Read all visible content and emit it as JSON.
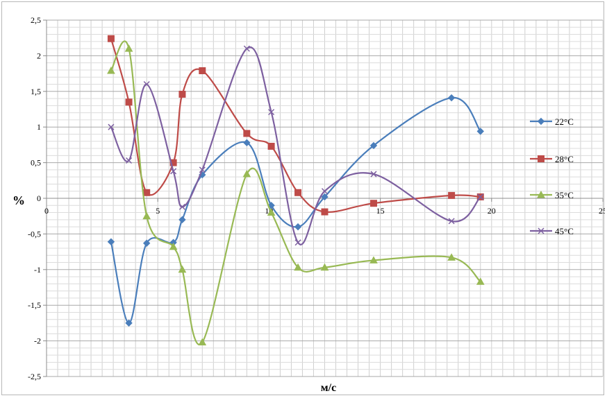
{
  "chart_data": {
    "type": "line",
    "title": "",
    "xlabel": "м/с",
    "ylabel": "%",
    "xlim": [
      0,
      25
    ],
    "ylim": [
      -2.5,
      2.5
    ],
    "x_ticks": [
      0,
      5,
      10,
      15,
      20,
      25
    ],
    "y_ticks": [
      2.5,
      2,
      1.5,
      1,
      0.5,
      0,
      -0.5,
      -1,
      -1.5,
      -2,
      -2.5
    ],
    "y_tick_labels": [
      "2,5",
      "2",
      "1,5",
      "1",
      "0,5",
      "0",
      "-0,5",
      "-1",
      "-1,5",
      "-2",
      "-2,5"
    ],
    "x_tick_labels": [
      "0",
      "5",
      "10",
      "15",
      "20",
      "25"
    ],
    "grid": true,
    "smooth": true,
    "legend_position": "right",
    "series": [
      {
        "name": "22°C",
        "color": "#4a7ebb",
        "marker": "diamond",
        "x": [
          2.9,
          3.7,
          4.5,
          5.7,
          6.1,
          7.0,
          9.0,
          10.1,
          11.3,
          12.5,
          14.7,
          18.2,
          19.5
        ],
        "y": [
          -0.61,
          -1.75,
          -0.63,
          -0.62,
          -0.3,
          0.33,
          0.78,
          -0.1,
          -0.4,
          0.02,
          0.74,
          1.41,
          0.94
        ]
      },
      {
        "name": "28°C",
        "color": "#be4b48",
        "marker": "square",
        "x": [
          2.9,
          3.7,
          4.5,
          5.7,
          6.1,
          7.0,
          9.0,
          10.1,
          11.3,
          12.5,
          14.7,
          18.2,
          19.5
        ],
        "y": [
          2.24,
          1.35,
          0.08,
          0.5,
          1.46,
          1.79,
          0.91,
          0.73,
          0.08,
          -0.19,
          -0.07,
          0.04,
          0.02
        ]
      },
      {
        "name": "35°C",
        "color": "#98b954",
        "marker": "triangle",
        "x": [
          2.9,
          3.7,
          4.5,
          5.7,
          6.1,
          7.0,
          9.0,
          10.1,
          11.3,
          12.5,
          14.7,
          18.2,
          19.5
        ],
        "y": [
          1.79,
          2.1,
          -0.25,
          -0.68,
          -1.0,
          -2.02,
          0.34,
          -0.2,
          -0.97,
          -0.97,
          -0.87,
          -0.83,
          -1.17
        ]
      },
      {
        "name": "45°C",
        "color": "#7d60a0",
        "marker": "x",
        "x": [
          2.9,
          3.7,
          4.5,
          5.7,
          6.1,
          7.0,
          9.0,
          10.1,
          11.3,
          12.5,
          14.7,
          18.2,
          19.5
        ],
        "y": [
          1.0,
          0.53,
          1.6,
          0.38,
          -0.12,
          0.4,
          2.1,
          1.21,
          -0.62,
          0.1,
          0.34,
          -0.32,
          0.02
        ]
      }
    ]
  }
}
